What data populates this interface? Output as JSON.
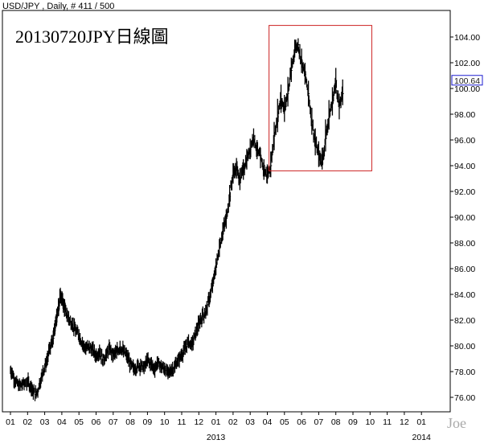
{
  "header": {
    "instrument_info": "USD/JPY , Daily, # 411 / 500"
  },
  "watermark": "Joe",
  "chart_data": {
    "type": "line",
    "title": "20130720JPY日線圖",
    "symbol": "USD/JPY",
    "timeframe": "Daily",
    "ylim": [
      74.6,
      105.6
    ],
    "y_ticks": [
      "76.00",
      "78.00",
      "80.00",
      "82.00",
      "84.00",
      "86.00",
      "88.00",
      "90.00",
      "92.00",
      "94.00",
      "96.00",
      "98.00",
      "100.00",
      "102.00",
      "104.00"
    ],
    "x_month_labels": [
      "01",
      "02",
      "03",
      "04",
      "05",
      "06",
      "07",
      "08",
      "09",
      "10",
      "11",
      "12",
      "01",
      "02",
      "03",
      "04",
      "05",
      "06",
      "07",
      "08",
      "09",
      "10",
      "11",
      "12",
      "01"
    ],
    "x_year_labels": [
      {
        "label": "2013",
        "month_index": 12
      },
      {
        "label": "2014",
        "month_index": 24
      }
    ],
    "last_price": "100.64",
    "highlight_box": {
      "from_month_index": 15.1,
      "to_month_index": 21.1,
      "y_low": 93.6,
      "y_high": 104.9
    },
    "series": [
      {
        "x_month_index": [
          0,
          0.1,
          0.3,
          0.5,
          0.7,
          1.0,
          1.2,
          1.3,
          1.5,
          1.7,
          1.9,
          2.1,
          2.3,
          2.5,
          2.6,
          2.7,
          2.8,
          2.9,
          3.0,
          3.1,
          3.2,
          3.4,
          3.6,
          3.8,
          4.0,
          4.2,
          4.4,
          4.6,
          4.8,
          5.0,
          5.2,
          5.4,
          5.6,
          5.8,
          6.0,
          6.2,
          6.4,
          6.6,
          6.8,
          7.0,
          7.2,
          7.4,
          7.6,
          7.8,
          8.0,
          8.2,
          8.4,
          8.6,
          8.8,
          9.0,
          9.2,
          9.4,
          9.6,
          9.8,
          10.0,
          10.2,
          10.4,
          10.6,
          10.8,
          11.0,
          11.2,
          11.4,
          11.6,
          11.8,
          12.0,
          12.2,
          12.4,
          12.6,
          12.8,
          13.0,
          13.2,
          13.4,
          13.6,
          13.8,
          14.0,
          14.2,
          14.4,
          14.6,
          14.8,
          15.0,
          15.2,
          15.4,
          15.6,
          15.8,
          16.0,
          16.2,
          16.4,
          16.6,
          16.8,
          17.0,
          17.2,
          17.4,
          17.6,
          17.8,
          18.0,
          18.2,
          18.4,
          18.6,
          18.8,
          19.0,
          19.2,
          19.4
        ],
        "close": [
          78.1,
          77.9,
          77.2,
          76.9,
          77.0,
          77.2,
          76.8,
          76.5,
          76.2,
          77.0,
          78.0,
          78.7,
          79.8,
          80.6,
          81.4,
          82.2,
          82.9,
          83.8,
          83.7,
          83.2,
          82.8,
          82.1,
          81.7,
          81.2,
          80.8,
          80.2,
          79.8,
          79.9,
          79.7,
          79.2,
          79.6,
          78.9,
          79.3,
          79.8,
          79.3,
          79.5,
          79.9,
          79.6,
          79.2,
          78.6,
          78.2,
          78.4,
          78.5,
          78.3,
          78.9,
          78.6,
          78.2,
          78.7,
          78.4,
          78.2,
          77.9,
          78.1,
          78.4,
          78.9,
          79.3,
          79.8,
          80.3,
          80.1,
          80.9,
          81.7,
          82.3,
          82.6,
          83.6,
          84.7,
          86.1,
          87.6,
          88.9,
          89.9,
          91.6,
          93.4,
          93.8,
          92.9,
          93.7,
          94.5,
          95.3,
          96.3,
          95.2,
          94.6,
          93.7,
          93.2,
          94.0,
          96.3,
          97.8,
          99.2,
          98.4,
          99.6,
          101.4,
          103.1,
          103.4,
          102.1,
          101.1,
          99.6,
          97.4,
          95.8,
          94.8,
          94.2,
          96.1,
          97.8,
          98.9,
          100.6,
          98.5,
          99.6,
          100.4,
          100.8,
          100.64
        ],
        "high": [
          78.4,
          78.3,
          77.6,
          77.3,
          77.4,
          77.6,
          77.3,
          76.9,
          76.7,
          77.5,
          78.5,
          79.2,
          80.3,
          81.2,
          82.0,
          82.9,
          83.7,
          84.2,
          84.1,
          83.7,
          83.3,
          82.7,
          82.2,
          81.7,
          81.3,
          80.7,
          80.3,
          80.4,
          80.2,
          79.8,
          80.1,
          79.4,
          79.8,
          80.3,
          79.8,
          80.0,
          80.4,
          80.1,
          79.7,
          79.1,
          78.7,
          78.9,
          79.0,
          78.8,
          79.4,
          79.1,
          78.7,
          79.2,
          78.9,
          78.7,
          78.4,
          78.6,
          78.9,
          79.4,
          79.8,
          80.4,
          80.9,
          80.7,
          81.5,
          82.3,
          82.9,
          83.2,
          84.2,
          85.3,
          86.8,
          88.3,
          89.6,
          90.6,
          92.5,
          94.2,
          94.6,
          93.8,
          94.5,
          95.3,
          96.1,
          96.9,
          96.0,
          95.4,
          94.5,
          94.1,
          95.1,
          97.4,
          99.2,
          100.3,
          99.5,
          100.9,
          102.4,
          103.8,
          103.9,
          103.1,
          102.0,
          100.6,
          98.5,
          96.9,
          95.9,
          95.4,
          97.6,
          99.1,
          100.1,
          101.6,
          99.6,
          100.7,
          101.4,
          101.2,
          101.0
        ],
        "low": [
          77.8,
          77.5,
          76.8,
          76.5,
          76.6,
          76.8,
          76.4,
          76.1,
          75.9,
          76.6,
          77.6,
          78.3,
          79.4,
          80.1,
          80.9,
          81.6,
          82.3,
          83.3,
          83.2,
          82.8,
          82.3,
          81.6,
          81.2,
          80.7,
          80.3,
          79.7,
          79.3,
          79.4,
          79.2,
          78.7,
          79.1,
          78.4,
          78.8,
          79.3,
          78.8,
          79.0,
          79.4,
          79.1,
          78.7,
          78.1,
          77.7,
          77.9,
          78.0,
          77.8,
          78.4,
          78.1,
          77.7,
          78.2,
          77.9,
          77.7,
          77.4,
          77.6,
          77.9,
          78.4,
          78.8,
          79.3,
          79.8,
          79.6,
          80.4,
          81.1,
          81.7,
          82.1,
          83.0,
          84.1,
          85.5,
          86.9,
          88.2,
          89.1,
          90.8,
          92.6,
          93.0,
          92.1,
          92.9,
          93.7,
          94.5,
          95.6,
          94.5,
          93.8,
          92.9,
          92.6,
          93.1,
          95.2,
          96.6,
          98.1,
          97.4,
          98.6,
          100.5,
          102.4,
          102.9,
          101.2,
          100.3,
          98.6,
          96.4,
          94.8,
          93.9,
          93.7,
          95.1,
          96.8,
          97.9,
          99.6,
          97.6,
          98.7,
          99.5,
          100.1,
          100.2
        ]
      }
    ]
  }
}
